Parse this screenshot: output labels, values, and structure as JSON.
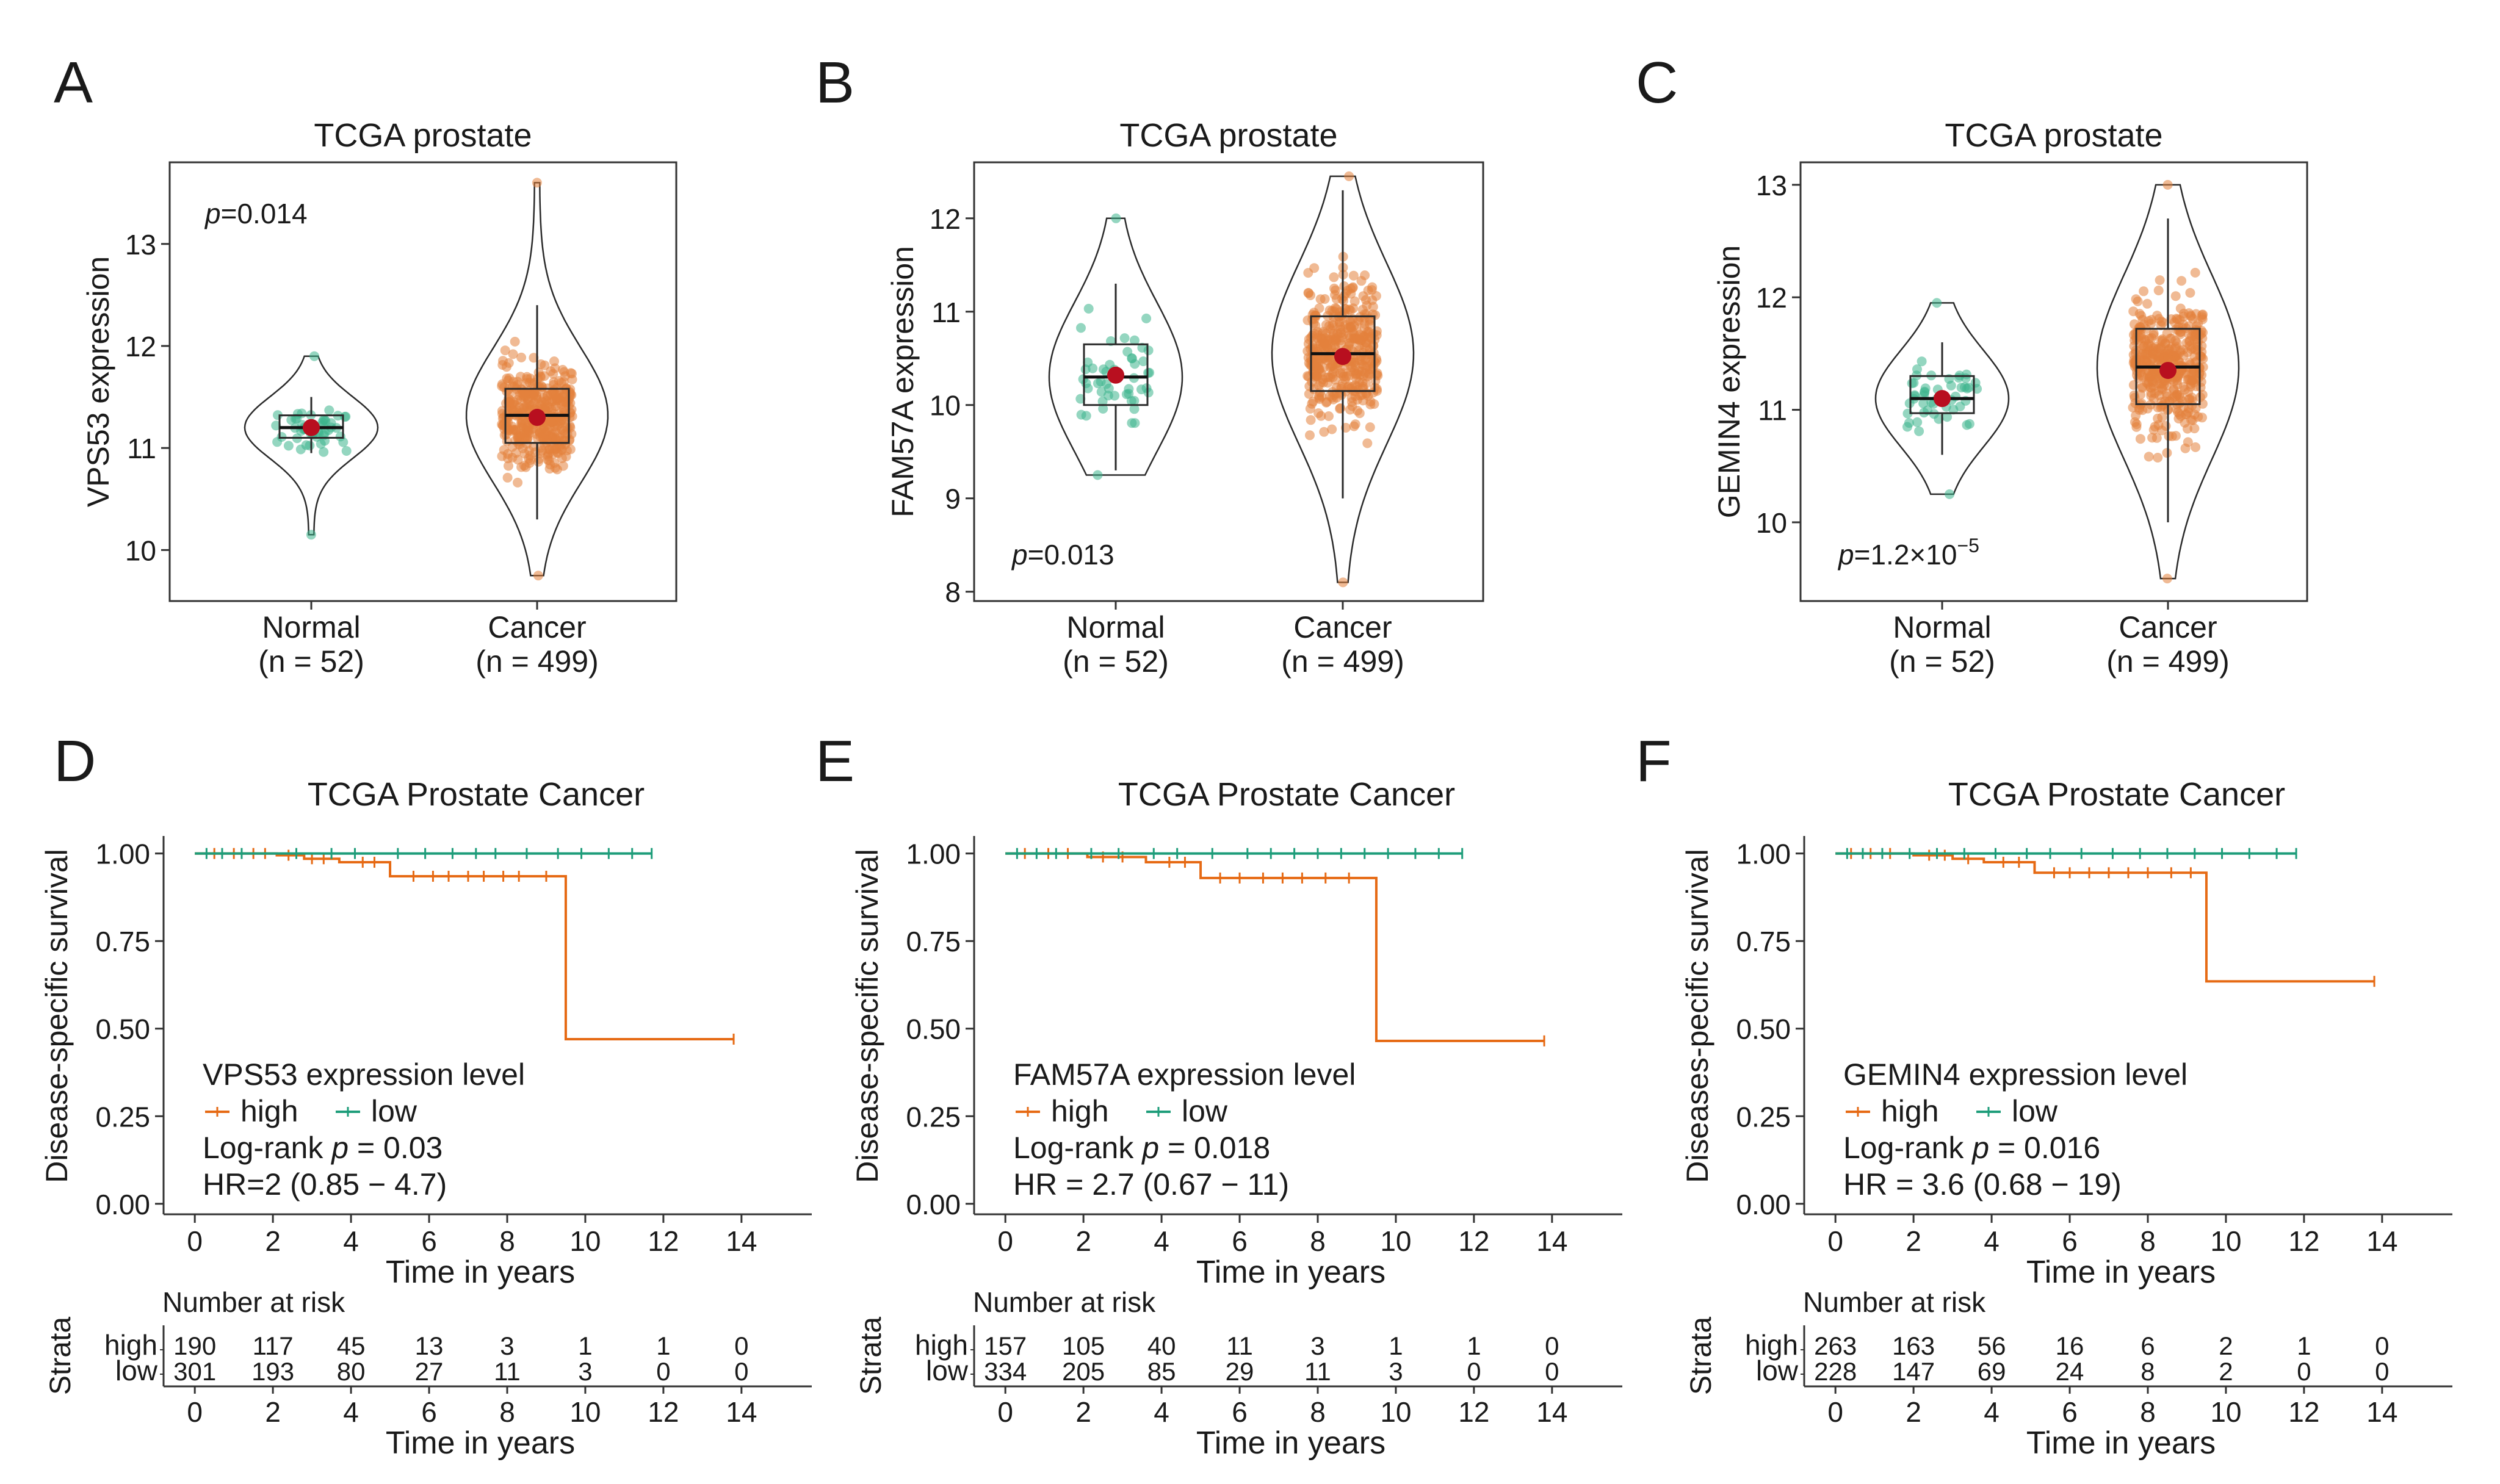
{
  "colors": {
    "normal": "#3cb58d",
    "cancer": "#e4813c",
    "mean_dot": "#b80f1f",
    "km_high": "#e66a14",
    "km_low": "#1e9d7a",
    "risk_high": "#e66a14",
    "risk_low": "#1e9d7a",
    "frame": "#333333"
  },
  "panels": [
    {
      "letter": "A",
      "type": "violin-box",
      "title": "TCGA prostate",
      "ylabel": "VPS53 expression",
      "p_label": "p",
      "p_value": "=0.014",
      "groups": [
        "Normal",
        "Cancer"
      ],
      "ns": [
        "(n = 52)",
        "(n = 499)"
      ],
      "chart_data": {
        "type": "violin",
        "ylim": [
          9.5,
          13.8
        ],
        "yticks": [
          10,
          11,
          12,
          13
        ],
        "series": [
          {
            "name": "Normal",
            "n": 52,
            "min": 10.15,
            "q1": 11.1,
            "median": 11.2,
            "q3": 11.32,
            "max": 11.9,
            "mean": 11.2,
            "lower_whisker": 10.95,
            "upper_whisker": 11.5
          },
          {
            "name": "Cancer",
            "n": 499,
            "min": 9.75,
            "q1": 11.05,
            "median": 11.32,
            "q3": 11.58,
            "max": 13.6,
            "mean": 11.3,
            "lower_whisker": 10.3,
            "upper_whisker": 12.4
          }
        ]
      }
    },
    {
      "letter": "B",
      "type": "violin-box",
      "title": "TCGA prostate",
      "ylabel": "FAM57A expression",
      "p_label": "p",
      "p_value": "=0.013",
      "groups": [
        "Normal",
        "Cancer"
      ],
      "ns": [
        "(n = 52)",
        "(n = 499)"
      ],
      "chart_data": {
        "type": "violin",
        "ylim": [
          7.9,
          12.6
        ],
        "yticks": [
          8,
          9,
          10,
          11,
          12
        ],
        "series": [
          {
            "name": "Normal",
            "n": 52,
            "min": 9.25,
            "q1": 10.0,
            "median": 10.3,
            "q3": 10.65,
            "max": 12.0,
            "mean": 10.32,
            "lower_whisker": 9.3,
            "upper_whisker": 11.3
          },
          {
            "name": "Cancer",
            "n": 499,
            "min": 8.1,
            "q1": 10.15,
            "median": 10.55,
            "q3": 10.95,
            "max": 12.45,
            "mean": 10.52,
            "lower_whisker": 9.0,
            "upper_whisker": 12.3
          }
        ]
      }
    },
    {
      "letter": "C",
      "type": "violin-box",
      "title": "TCGA prostate",
      "ylabel": "GEMIN4 expression",
      "p_label": "p",
      "p_value": "=1.2×10",
      "p_exp": "−5",
      "groups": [
        "Normal",
        "Cancer"
      ],
      "ns": [
        "(n = 52)",
        "(n = 499)"
      ],
      "chart_data": {
        "type": "violin",
        "ylim": [
          9.3,
          13.2
        ],
        "yticks": [
          10,
          11,
          12,
          13
        ],
        "series": [
          {
            "name": "Normal",
            "n": 52,
            "min": 10.25,
            "q1": 10.97,
            "median": 11.1,
            "q3": 11.3,
            "max": 11.95,
            "mean": 11.1,
            "lower_whisker": 10.6,
            "upper_whisker": 11.6
          },
          {
            "name": "Cancer",
            "n": 499,
            "min": 9.5,
            "q1": 11.05,
            "median": 11.38,
            "q3": 11.72,
            "max": 13.0,
            "mean": 11.35,
            "lower_whisker": 10.0,
            "upper_whisker": 12.7
          }
        ]
      }
    },
    {
      "letter": "D",
      "type": "km",
      "title": "TCGA Prostate Cancer",
      "ylabel": "Disease-specific survival",
      "xlabel": "Time in years",
      "legend_title": "VPS53 expression level",
      "legend_high": "high",
      "legend_low": "low",
      "logrank_prefix": "Log-rank ",
      "logrank_p": "p",
      "logrank_value": " = 0.03",
      "hr_text": "HR=2 (0.85 − 4.7)",
      "risk_title": "Number at risk",
      "risk_ylabel": "Strata",
      "risk_high": [
        "190",
        "117",
        "45",
        "13",
        "3",
        "1",
        "1",
        "0"
      ],
      "risk_low": [
        "301",
        "193",
        "80",
        "27",
        "11",
        "3",
        "0",
        "0"
      ],
      "chart_data": {
        "type": "line",
        "xlim": [
          -0.8,
          15.8
        ],
        "ylim": [
          -0.03,
          1.05
        ],
        "xticks": [
          0,
          2,
          4,
          6,
          8,
          10,
          12,
          14
        ],
        "yticks": [
          0,
          0.25,
          0.5,
          0.75,
          1.0
        ],
        "ytick_labels": [
          "0.00",
          "0.25",
          "0.50",
          "0.75",
          "1.00"
        ],
        "series": [
          {
            "name": "high",
            "steps": [
              [
                0,
                1.0
              ],
              [
                2.1,
                0.995
              ],
              [
                2.8,
                0.985
              ],
              [
                3.7,
                0.975
              ],
              [
                5.0,
                0.935
              ],
              [
                9.5,
                0.935
              ],
              [
                9.5,
                0.47
              ],
              [
                13.8,
                0.47
              ]
            ],
            "censor": [
              0.5,
              1.0,
              1.5,
              1.8,
              2.4,
              3.0,
              3.3,
              4.3,
              4.6,
              5.6,
              6.1,
              6.5,
              7.0,
              7.4,
              7.9,
              8.3,
              9.0,
              13.8
            ]
          },
          {
            "name": "low",
            "steps": [
              [
                0,
                1.0
              ],
              [
                11.7,
                1.0
              ]
            ],
            "censor": [
              0.3,
              0.7,
              1.2,
              2.6,
              3.5,
              4.1,
              5.2,
              5.9,
              6.6,
              7.2,
              7.7,
              8.5,
              9.3,
              9.9,
              10.6,
              11.2,
              11.7
            ]
          }
        ]
      }
    },
    {
      "letter": "E",
      "type": "km",
      "title": "TCGA Prostate Cancer",
      "ylabel": "Disease-specific survival",
      "xlabel": "Time in years",
      "legend_title": "FAM57A expression level",
      "legend_high": "high",
      "legend_low": "low",
      "logrank_prefix": "Log-rank ",
      "logrank_p": "p",
      "logrank_value": " =  0.018",
      "hr_text": "HR = 2.7 (0.67 − 11)",
      "risk_title": "Number at risk",
      "risk_ylabel": "Strata",
      "risk_high": [
        "157",
        "105",
        "40",
        "11",
        "3",
        "1",
        "1",
        "0"
      ],
      "risk_low": [
        "334",
        "205",
        "85",
        "29",
        "11",
        "3",
        "0",
        "0"
      ],
      "chart_data": {
        "type": "line",
        "xlim": [
          -0.8,
          15.8
        ],
        "ylim": [
          -0.03,
          1.05
        ],
        "xticks": [
          0,
          2,
          4,
          6,
          8,
          10,
          12,
          14
        ],
        "yticks": [
          0,
          0.25,
          0.5,
          0.75,
          1.0
        ],
        "ytick_labels": [
          "0.00",
          "0.25",
          "0.50",
          "0.75",
          "1.00"
        ],
        "series": [
          {
            "name": "high",
            "steps": [
              [
                0,
                1.0
              ],
              [
                2.1,
                0.99
              ],
              [
                3.6,
                0.975
              ],
              [
                5.0,
                0.93
              ],
              [
                9.5,
                0.93
              ],
              [
                9.5,
                0.465
              ],
              [
                13.8,
                0.465
              ]
            ],
            "censor": [
              0.5,
              1.1,
              1.6,
              2.5,
              3.0,
              4.2,
              4.6,
              5.5,
              6.0,
              6.6,
              7.1,
              7.6,
              8.2,
              8.8,
              13.8
            ]
          },
          {
            "name": "low",
            "steps": [
              [
                0,
                1.0
              ],
              [
                11.7,
                1.0
              ]
            ],
            "censor": [
              0.3,
              0.8,
              1.3,
              2.2,
              2.9,
              3.8,
              4.4,
              5.3,
              6.2,
              6.8,
              7.4,
              8.0,
              8.6,
              9.2,
              9.8,
              10.5,
              11.1,
              11.7
            ]
          }
        ]
      }
    },
    {
      "letter": "F",
      "type": "km",
      "title": "TCGA Prostate Cancer",
      "ylabel": "Diseases-pecific survival",
      "xlabel": "Time in years",
      "legend_title": "GEMIN4 expression level",
      "legend_high": "high",
      "legend_low": "low",
      "logrank_prefix": "Log-rank ",
      "logrank_p": "p",
      "logrank_value": " = 0.016",
      "hr_text": "HR = 3.6 (0.68 − 19)",
      "risk_title": "Number at risk",
      "risk_ylabel": "Strata",
      "risk_high": [
        "263",
        "163",
        "56",
        "16",
        "6",
        "2",
        "1",
        "0"
      ],
      "risk_low": [
        "228",
        "147",
        "69",
        "24",
        "8",
        "2",
        "0",
        "0"
      ],
      "chart_data": {
        "type": "line",
        "xlim": [
          -0.8,
          15.8
        ],
        "ylim": [
          -0.03,
          1.05
        ],
        "xticks": [
          0,
          2,
          4,
          6,
          8,
          10,
          12,
          14
        ],
        "yticks": [
          0,
          0.25,
          0.5,
          0.75,
          1.0
        ],
        "ytick_labels": [
          "0.00",
          "0.25",
          "0.50",
          "0.75",
          "1.00"
        ],
        "series": [
          {
            "name": "high",
            "steps": [
              [
                0,
                1.0
              ],
              [
                2.0,
                0.995
              ],
              [
                3.0,
                0.985
              ],
              [
                3.8,
                0.975
              ],
              [
                5.1,
                0.945
              ],
              [
                9.5,
                0.945
              ],
              [
                9.5,
                0.635
              ],
              [
                13.8,
                0.635
              ]
            ],
            "censor": [
              0.4,
              0.9,
              1.4,
              2.4,
              2.8,
              3.4,
              4.3,
              4.7,
              5.6,
              6.0,
              6.5,
              7.0,
              7.5,
              8.0,
              8.6,
              9.1,
              13.8
            ]
          },
          {
            "name": "low",
            "steps": [
              [
                0,
                1.0
              ],
              [
                11.8,
                1.0
              ]
            ],
            "censor": [
              0.3,
              0.7,
              1.2,
              1.9,
              2.6,
              3.3,
              4.1,
              4.9,
              5.5,
              6.3,
              7.1,
              7.8,
              8.5,
              9.2,
              9.9,
              10.6,
              11.3,
              11.8
            ]
          }
        ]
      }
    }
  ]
}
